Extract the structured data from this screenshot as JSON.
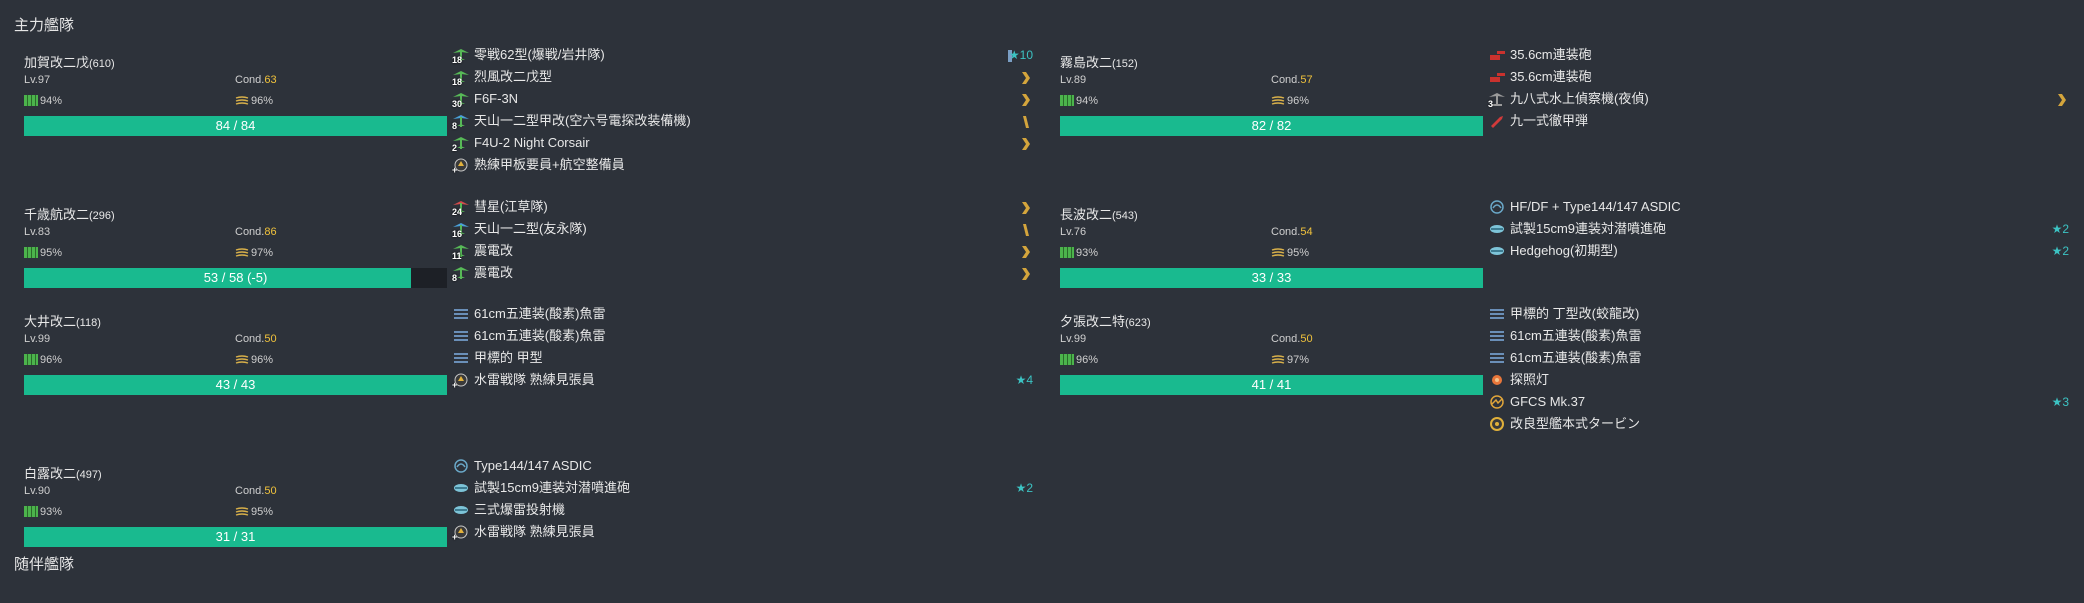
{
  "fleets": [
    {
      "title": "主力艦隊"
    },
    {
      "title": "随伴艦隊"
    }
  ],
  "ships": [
    {
      "name": "加賀改二戊",
      "id": "(610)",
      "lv": "Lv.97",
      "cond_label": "Cond.",
      "cond": "63",
      "fuel": "94%",
      "ammo": "96%",
      "hp": "84 / 84",
      "hp_ratio": 1.0,
      "equipment": [
        {
          "icon": "fighter-icon",
          "count": "18",
          "name": "零戦62型(爆戦/岩井隊)",
          "star": "★10",
          "prof": "prof-bar-icon"
        },
        {
          "icon": "fighter-icon",
          "count": "18",
          "name": "烈風改二戊型",
          "star": "",
          "prof": "prof-chevron-icon"
        },
        {
          "icon": "fighter-icon",
          "count": "30",
          "name": "F6F-3N",
          "star": "",
          "prof": "prof-chevron-icon"
        },
        {
          "icon": "torpedo-bomber-icon",
          "count": "8",
          "name": "天山一二型甲改(空六号電探改装備機)",
          "star": "",
          "prof": "prof-slash-icon"
        },
        {
          "icon": "fighter-icon",
          "count": "2",
          "name": "F4U-2 Night Corsair",
          "star": "",
          "prof": "prof-chevron-icon"
        },
        {
          "icon": "personnel-icon",
          "count": "+",
          "name": "熟練甲板要員+航空整備員",
          "star": "",
          "prof": ""
        }
      ]
    },
    {
      "name": "千歳航改二",
      "id": "(296)",
      "lv": "Lv.83",
      "cond_label": "Cond.",
      "cond": "86",
      "fuel": "95%",
      "ammo": "97%",
      "hp": "53 / 58 (-5)",
      "hp_ratio": 0.914,
      "equipment": [
        {
          "icon": "dive-bomber-icon",
          "count": "24",
          "name": "彗星(江草隊)",
          "star": "",
          "prof": "prof-chevron-icon"
        },
        {
          "icon": "torpedo-bomber-icon",
          "count": "16",
          "name": "天山一二型(友永隊)",
          "star": "",
          "prof": "prof-slash-icon"
        },
        {
          "icon": "fighter-icon",
          "count": "11",
          "name": "震電改",
          "star": "",
          "prof": "prof-chevron-icon"
        },
        {
          "icon": "fighter-icon",
          "count": "8",
          "name": "震電改",
          "star": "",
          "prof": "prof-chevron-icon"
        }
      ]
    },
    {
      "name": "大井改二",
      "id": "(118)",
      "lv": "Lv.99",
      "cond_label": "Cond.",
      "cond": "50",
      "fuel": "96%",
      "ammo": "96%",
      "hp": "43 / 43",
      "hp_ratio": 1.0,
      "equipment": [
        {
          "icon": "torpedo-icon",
          "count": "",
          "name": "61cm五連装(酸素)魚雷",
          "star": "",
          "prof": ""
        },
        {
          "icon": "torpedo-icon",
          "count": "",
          "name": "61cm五連装(酸素)魚雷",
          "star": "",
          "prof": ""
        },
        {
          "icon": "torpedo-icon",
          "count": "",
          "name": "甲標的 甲型",
          "star": "",
          "prof": ""
        },
        {
          "icon": "personnel-icon",
          "count": "+",
          "name": "水雷戦隊 熟練見張員",
          "star": "★4",
          "prof": ""
        }
      ]
    },
    {
      "name": "白露改二",
      "id": "(497)",
      "lv": "Lv.90",
      "cond_label": "Cond.",
      "cond": "50",
      "fuel": "93%",
      "ammo": "95%",
      "hp": "31 / 31",
      "hp_ratio": 1.0,
      "equipment": [
        {
          "icon": "sonar-icon",
          "count": "",
          "name": "Type144/147 ASDIC",
          "star": "",
          "prof": ""
        },
        {
          "icon": "depth-charge-icon",
          "count": "",
          "name": "試製15cm9連装対潜噴進砲",
          "star": "★2",
          "prof": ""
        },
        {
          "icon": "depth-charge-icon",
          "count": "",
          "name": "三式爆雷投射機",
          "star": "",
          "prof": ""
        },
        {
          "icon": "personnel-icon",
          "count": "+",
          "name": "水雷戦隊 熟練見張員",
          "star": "",
          "prof": ""
        }
      ]
    },
    {
      "name": "霧島改二",
      "id": "(152)",
      "lv": "Lv.89",
      "cond_label": "Cond.",
      "cond": "57",
      "fuel": "94%",
      "ammo": "96%",
      "hp": "82 / 82",
      "hp_ratio": 1.0,
      "equipment": [
        {
          "icon": "large-gun-icon",
          "count": "",
          "name": "35.6cm連装砲",
          "star": "",
          "prof": ""
        },
        {
          "icon": "large-gun-icon",
          "count": "",
          "name": "35.6cm連装砲",
          "star": "",
          "prof": ""
        },
        {
          "icon": "seaplane-icon",
          "count": "3",
          "name": "九八式水上偵察機(夜偵)",
          "star": "",
          "prof": "prof-chevron-icon"
        },
        {
          "icon": "ap-shell-icon",
          "count": "",
          "name": "九一式徹甲弾",
          "star": "",
          "prof": ""
        }
      ]
    },
    {
      "name": "長波改二",
      "id": "(543)",
      "lv": "Lv.76",
      "cond_label": "Cond.",
      "cond": "54",
      "fuel": "93%",
      "ammo": "95%",
      "hp": "33 / 33",
      "hp_ratio": 1.0,
      "equipment": [
        {
          "icon": "sonar-icon",
          "count": "",
          "name": "HF/DF + Type144/147 ASDIC",
          "star": "",
          "prof": ""
        },
        {
          "icon": "depth-charge-icon",
          "count": "",
          "name": "試製15cm9連装対潜噴進砲",
          "star": "★2",
          "prof": ""
        },
        {
          "icon": "depth-charge-icon",
          "count": "",
          "name": "Hedgehog(初期型)",
          "star": "★2",
          "prof": ""
        }
      ]
    },
    {
      "name": "夕張改二特",
      "id": "(623)",
      "lv": "Lv.99",
      "cond_label": "Cond.",
      "cond": "50",
      "fuel": "96%",
      "ammo": "97%",
      "hp": "41 / 41",
      "hp_ratio": 1.0,
      "equipment": [
        {
          "icon": "torpedo-icon",
          "count": "",
          "name": "甲標的 丁型改(蛟龍改)",
          "star": "",
          "prof": ""
        },
        {
          "icon": "torpedo-icon",
          "count": "",
          "name": "61cm五連装(酸素)魚雷",
          "star": "",
          "prof": ""
        },
        {
          "icon": "torpedo-icon",
          "count": "",
          "name": "61cm五連装(酸素)魚雷",
          "star": "",
          "prof": ""
        },
        {
          "icon": "searchlight-icon",
          "count": "",
          "name": "探照灯",
          "star": "",
          "prof": ""
        },
        {
          "icon": "fire-control-icon",
          "count": "",
          "name": "GFCS Mk.37",
          "star": "★3",
          "prof": ""
        },
        {
          "icon": "turbine-icon",
          "count": "",
          "name": "改良型艦本式タービン",
          "star": "",
          "prof": ""
        }
      ]
    }
  ],
  "colors": {
    "hp_bar": "#19ba8f",
    "cond_value": "#f0c23c",
    "star": "#3cc3c3",
    "proficiency": "#d4a53c"
  }
}
